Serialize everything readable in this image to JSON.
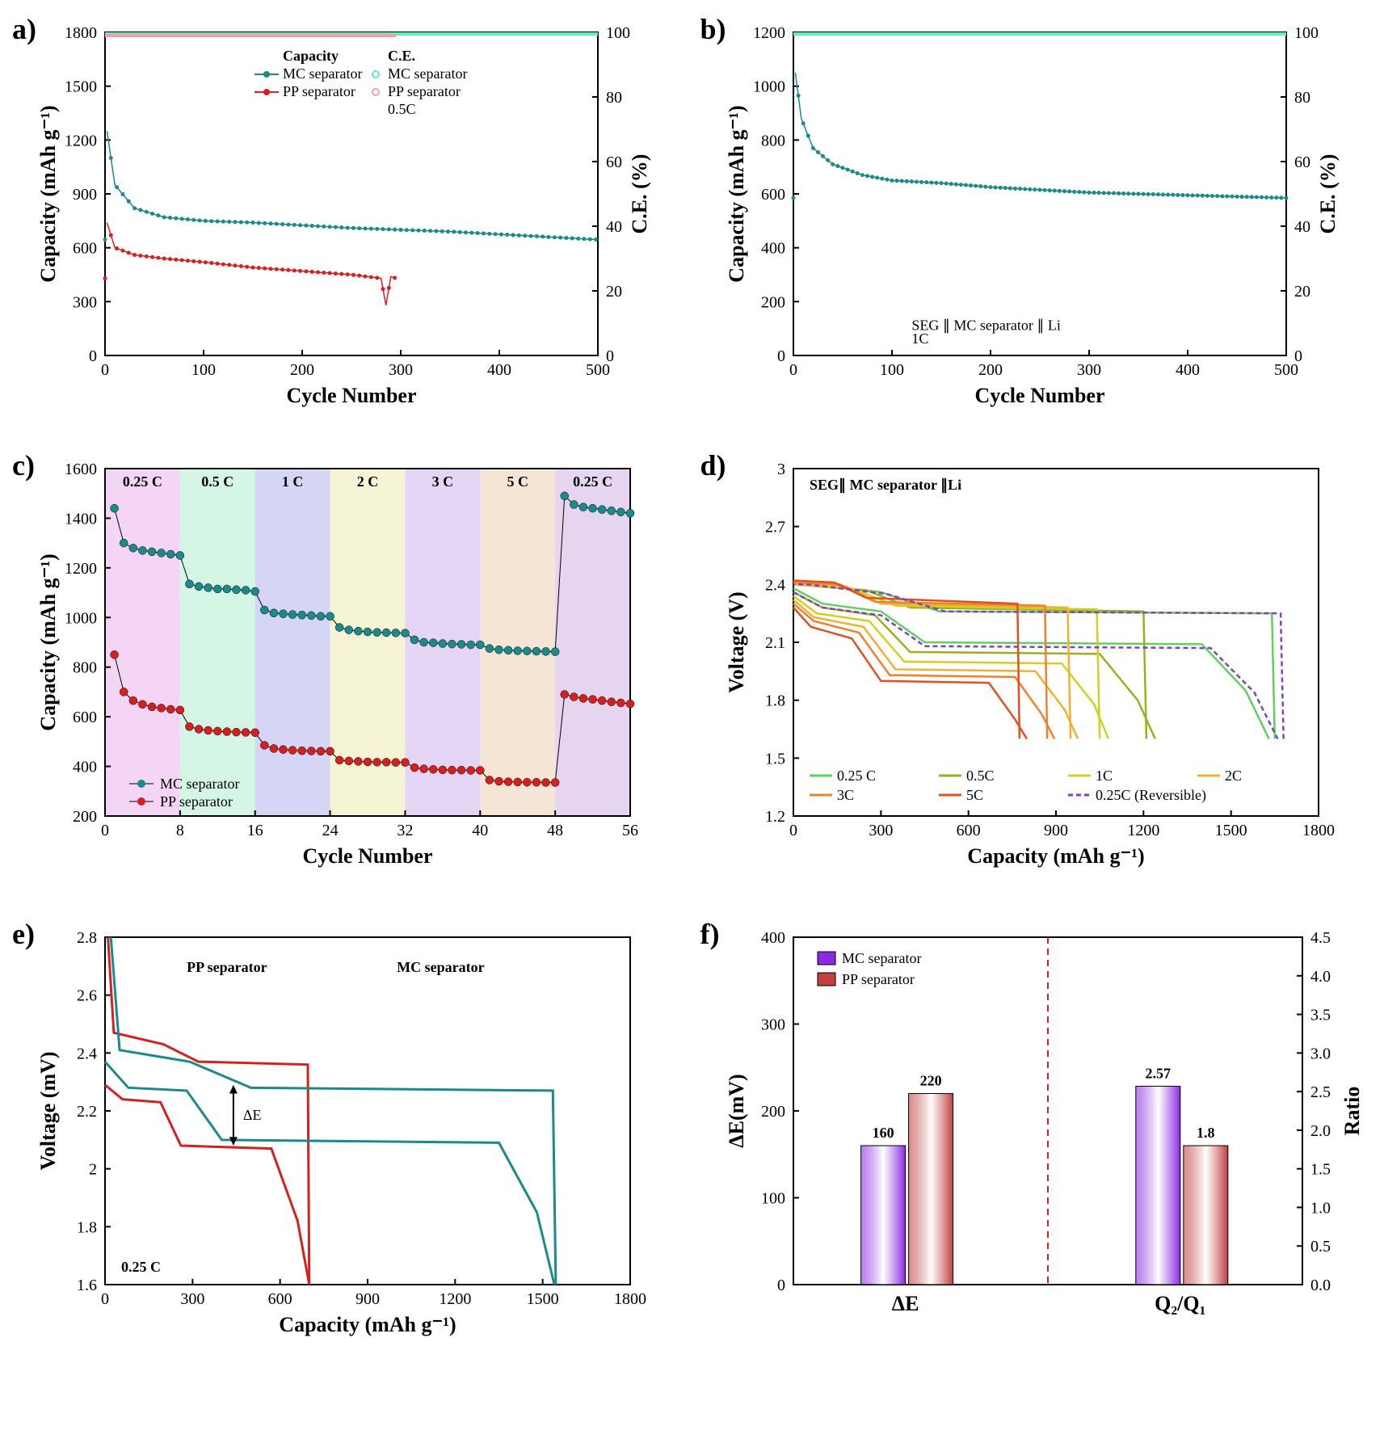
{
  "labels": {
    "a": "a)",
    "b": "b)",
    "c": "c)",
    "d": "d)",
    "e": "e)",
    "f": "f)"
  },
  "colors": {
    "mc": "#1a8a8a",
    "pp": "#d62020",
    "mc_ce": "#5bf0c0",
    "pp_ce": "#f5a0a0",
    "purple_bar": "#8a2be2",
    "red_bar": "#c04040",
    "rate_bands": [
      "#f5d5f5",
      "#d5f5e5",
      "#d5d5f5",
      "#f5f5d5",
      "#e5d5f5",
      "#f5e5d5",
      "#e5d5f0"
    ],
    "d_colors": [
      "#60d060",
      "#9ab020",
      "#d0d020",
      "#f0b030",
      "#f08030",
      "#e05020",
      "#8040c0"
    ]
  },
  "a": {
    "xlabel": "Cycle Number",
    "ylabel": "Capacity (mAh g⁻¹)",
    "y2label": "C.E. (%)",
    "xlim": [
      0,
      500
    ],
    "ylim": [
      0,
      1800
    ],
    "y2lim": [
      0,
      100
    ],
    "xticks": [
      0,
      100,
      200,
      300,
      400,
      500
    ],
    "yticks": [
      0,
      300,
      600,
      900,
      1200,
      1500,
      1800
    ],
    "y2ticks": [
      0,
      20,
      40,
      60,
      80,
      100
    ],
    "legend_header": [
      "Capacity",
      "C.E."
    ],
    "legend_rows": [
      [
        "MC separator",
        "MC separator"
      ],
      [
        "PP separator",
        "PP separator"
      ]
    ],
    "anno": "0.5C",
    "mc_cap": [
      [
        2,
        1250
      ],
      [
        10,
        950
      ],
      [
        30,
        820
      ],
      [
        60,
        770
      ],
      [
        100,
        750
      ],
      [
        150,
        740
      ],
      [
        200,
        725
      ],
      [
        250,
        710
      ],
      [
        300,
        700
      ],
      [
        350,
        690
      ],
      [
        400,
        675
      ],
      [
        450,
        660
      ],
      [
        500,
        645
      ]
    ],
    "pp_cap": [
      [
        2,
        740
      ],
      [
        10,
        600
      ],
      [
        30,
        560
      ],
      [
        60,
        540
      ],
      [
        100,
        520
      ],
      [
        150,
        490
      ],
      [
        200,
        470
      ],
      [
        250,
        450
      ],
      [
        280,
        430
      ],
      [
        285,
        280
      ],
      [
        290,
        440
      ],
      [
        295,
        430
      ]
    ],
    "mc_ce_y": 99.5,
    "pp_ce_y": 99.0
  },
  "b": {
    "xlabel": "Cycle Number",
    "ylabel": "Capacity (mAh g⁻¹)",
    "y2label": "C.E. (%)",
    "xlim": [
      0,
      500
    ],
    "ylim": [
      0,
      1200
    ],
    "y2lim": [
      0,
      100
    ],
    "xticks": [
      0,
      100,
      200,
      300,
      400,
      500
    ],
    "yticks": [
      0,
      200,
      400,
      600,
      800,
      1000,
      1200
    ],
    "y2ticks": [
      0,
      20,
      40,
      60,
      80,
      100
    ],
    "anno1": "SEG ∥ MC separator ∥ Li",
    "anno2": "1C",
    "mc_cap": [
      [
        2,
        1050
      ],
      [
        8,
        880
      ],
      [
        20,
        770
      ],
      [
        40,
        710
      ],
      [
        70,
        670
      ],
      [
        100,
        650
      ],
      [
        150,
        640
      ],
      [
        200,
        625
      ],
      [
        250,
        615
      ],
      [
        300,
        605
      ],
      [
        350,
        600
      ],
      [
        400,
        595
      ],
      [
        450,
        590
      ],
      [
        500,
        585
      ]
    ],
    "ce_y": 99.5
  },
  "c": {
    "xlabel": "Cycle Number",
    "ylabel": "Capacity (mAh g⁻¹)",
    "xlim": [
      0,
      56
    ],
    "ylim": [
      200,
      1600
    ],
    "xticks": [
      0,
      8,
      16,
      24,
      32,
      40,
      48,
      56
    ],
    "yticks": [
      200,
      400,
      600,
      800,
      1000,
      1200,
      1400,
      1600
    ],
    "rate_labels": [
      "0.25 C",
      "0.5 C",
      "1 C",
      "2 C",
      "3 C",
      "5 C",
      "0.25 C"
    ],
    "legend": [
      "MC separator",
      "PP  separator"
    ],
    "mc": [
      [
        1,
        1440
      ],
      [
        2,
        1300
      ],
      [
        3,
        1280
      ],
      [
        4,
        1270
      ],
      [
        5,
        1265
      ],
      [
        6,
        1260
      ],
      [
        7,
        1255
      ],
      [
        8,
        1250
      ],
      [
        9,
        1135
      ],
      [
        10,
        1125
      ],
      [
        11,
        1120
      ],
      [
        12,
        1115
      ],
      [
        13,
        1115
      ],
      [
        14,
        1112
      ],
      [
        15,
        1110
      ],
      [
        16,
        1105
      ],
      [
        17,
        1030
      ],
      [
        18,
        1018
      ],
      [
        19,
        1015
      ],
      [
        20,
        1012
      ],
      [
        21,
        1010
      ],
      [
        22,
        1008
      ],
      [
        23,
        1005
      ],
      [
        24,
        1005
      ],
      [
        25,
        960
      ],
      [
        26,
        950
      ],
      [
        27,
        945
      ],
      [
        28,
        942
      ],
      [
        29,
        940
      ],
      [
        30,
        939
      ],
      [
        31,
        938
      ],
      [
        32,
        937
      ],
      [
        33,
        910
      ],
      [
        34,
        900
      ],
      [
        35,
        898
      ],
      [
        36,
        895
      ],
      [
        37,
        893
      ],
      [
        38,
        892
      ],
      [
        39,
        890
      ],
      [
        40,
        890
      ],
      [
        41,
        875
      ],
      [
        42,
        870
      ],
      [
        43,
        868
      ],
      [
        44,
        866
      ],
      [
        45,
        865
      ],
      [
        46,
        864
      ],
      [
        47,
        863
      ],
      [
        48,
        862
      ],
      [
        49,
        1490
      ],
      [
        50,
        1455
      ],
      [
        51,
        1445
      ],
      [
        52,
        1440
      ],
      [
        53,
        1435
      ],
      [
        54,
        1430
      ],
      [
        55,
        1425
      ],
      [
        56,
        1420
      ]
    ],
    "pp": [
      [
        1,
        850
      ],
      [
        2,
        700
      ],
      [
        3,
        665
      ],
      [
        4,
        650
      ],
      [
        5,
        640
      ],
      [
        6,
        635
      ],
      [
        7,
        630
      ],
      [
        8,
        627
      ],
      [
        9,
        560
      ],
      [
        10,
        550
      ],
      [
        11,
        545
      ],
      [
        12,
        542
      ],
      [
        13,
        540
      ],
      [
        14,
        538
      ],
      [
        15,
        537
      ],
      [
        16,
        536
      ],
      [
        17,
        485
      ],
      [
        18,
        472
      ],
      [
        19,
        468
      ],
      [
        20,
        465
      ],
      [
        21,
        463
      ],
      [
        22,
        462
      ],
      [
        23,
        461
      ],
      [
        24,
        461
      ],
      [
        25,
        425
      ],
      [
        26,
        422
      ],
      [
        27,
        420
      ],
      [
        28,
        418
      ],
      [
        29,
        417
      ],
      [
        30,
        417
      ],
      [
        31,
        416
      ],
      [
        32,
        416
      ],
      [
        33,
        395
      ],
      [
        34,
        390
      ],
      [
        35,
        388
      ],
      [
        36,
        386
      ],
      [
        37,
        385
      ],
      [
        38,
        385
      ],
      [
        39,
        384
      ],
      [
        40,
        384
      ],
      [
        41,
        345
      ],
      [
        42,
        340
      ],
      [
        43,
        338
      ],
      [
        44,
        337
      ],
      [
        45,
        336
      ],
      [
        46,
        336
      ],
      [
        47,
        335
      ],
      [
        48,
        335
      ],
      [
        49,
        690
      ],
      [
        50,
        680
      ],
      [
        51,
        674
      ],
      [
        52,
        670
      ],
      [
        53,
        665
      ],
      [
        54,
        660
      ],
      [
        55,
        656
      ],
      [
        56,
        652
      ]
    ]
  },
  "d": {
    "xlabel": "Capacity (mAh g⁻¹)",
    "ylabel": "Voltage (V)",
    "xlim": [
      0,
      1800
    ],
    "ylim": [
      1.2,
      3.0
    ],
    "xticks": [
      0,
      300,
      600,
      900,
      1200,
      1500,
      1800
    ],
    "yticks": [
      1.2,
      1.5,
      1.8,
      2.1,
      2.4,
      2.7,
      3.0
    ],
    "anno": "SEG∥ MC separator ∥Li",
    "legend": [
      "0.25 C",
      "0.5C",
      "1C",
      "2C",
      "3C",
      "5C",
      "0.25C (Reversible)"
    ],
    "curves": [
      {
        "c": 0,
        "dis": [
          [
            0,
            2.38
          ],
          [
            100,
            2.3
          ],
          [
            300,
            2.26
          ],
          [
            450,
            2.1
          ],
          [
            1400,
            2.09
          ],
          [
            1550,
            1.85
          ],
          [
            1630,
            1.6
          ]
        ],
        "chg": [
          [
            1650,
            1.6
          ],
          [
            1640,
            2.25
          ],
          [
            500,
            2.26
          ],
          [
            300,
            2.36
          ],
          [
            50,
            2.4
          ],
          [
            0,
            2.4
          ]
        ]
      },
      {
        "c": 1,
        "dis": [
          [
            0,
            2.36
          ],
          [
            100,
            2.28
          ],
          [
            280,
            2.24
          ],
          [
            400,
            2.05
          ],
          [
            1050,
            2.04
          ],
          [
            1180,
            1.8
          ],
          [
            1240,
            1.6
          ]
        ],
        "chg": [
          [
            1210,
            1.6
          ],
          [
            1200,
            2.26
          ],
          [
            400,
            2.28
          ],
          [
            250,
            2.37
          ],
          [
            0,
            2.4
          ]
        ]
      },
      {
        "c": 2,
        "dis": [
          [
            0,
            2.34
          ],
          [
            80,
            2.25
          ],
          [
            260,
            2.21
          ],
          [
            380,
            2.0
          ],
          [
            920,
            1.99
          ],
          [
            1030,
            1.78
          ],
          [
            1080,
            1.6
          ]
        ],
        "chg": [
          [
            1050,
            1.6
          ],
          [
            1040,
            2.27
          ],
          [
            350,
            2.29
          ],
          [
            200,
            2.38
          ],
          [
            0,
            2.4
          ]
        ]
      },
      {
        "c": 3,
        "dis": [
          [
            0,
            2.32
          ],
          [
            70,
            2.23
          ],
          [
            240,
            2.18
          ],
          [
            350,
            1.96
          ],
          [
            830,
            1.95
          ],
          [
            930,
            1.75
          ],
          [
            975,
            1.6
          ]
        ],
        "chg": [
          [
            950,
            1.6
          ],
          [
            940,
            2.28
          ],
          [
            300,
            2.3
          ],
          [
            180,
            2.39
          ],
          [
            0,
            2.4
          ]
        ]
      },
      {
        "c": 4,
        "dis": [
          [
            0,
            2.3
          ],
          [
            70,
            2.21
          ],
          [
            225,
            2.15
          ],
          [
            330,
            1.93
          ],
          [
            760,
            1.92
          ],
          [
            850,
            1.73
          ],
          [
            895,
            1.6
          ]
        ],
        "chg": [
          [
            870,
            1.6
          ],
          [
            862,
            2.29
          ],
          [
            280,
            2.31
          ],
          [
            160,
            2.4
          ],
          [
            0,
            2.41
          ]
        ]
      },
      {
        "c": 5,
        "dis": [
          [
            0,
            2.28
          ],
          [
            60,
            2.18
          ],
          [
            200,
            2.12
          ],
          [
            300,
            1.9
          ],
          [
            670,
            1.89
          ],
          [
            760,
            1.7
          ],
          [
            800,
            1.6
          ]
        ],
        "chg": [
          [
            775,
            1.6
          ],
          [
            768,
            2.3
          ],
          [
            250,
            2.33
          ],
          [
            140,
            2.41
          ],
          [
            0,
            2.42
          ]
        ]
      },
      {
        "c": 6,
        "dash": true,
        "dis": [
          [
            0,
            2.36
          ],
          [
            100,
            2.28
          ],
          [
            300,
            2.24
          ],
          [
            450,
            2.08
          ],
          [
            1430,
            2.07
          ],
          [
            1580,
            1.84
          ],
          [
            1660,
            1.6
          ]
        ],
        "chg": [
          [
            1680,
            1.6
          ],
          [
            1670,
            2.25
          ],
          [
            520,
            2.26
          ],
          [
            320,
            2.35
          ],
          [
            50,
            2.4
          ],
          [
            0,
            2.4
          ]
        ]
      }
    ]
  },
  "e": {
    "xlabel": "Capacity (mAh g⁻¹)",
    "ylabel": "Voltage (mV)",
    "xlim": [
      0,
      1800
    ],
    "ylim": [
      1.6,
      2.8
    ],
    "xticks": [
      0,
      300,
      600,
      900,
      1200,
      1500,
      1800
    ],
    "yticks": [
      1.6,
      1.8,
      2.0,
      2.2,
      2.4,
      2.6,
      2.8
    ],
    "legend": [
      "PP separator",
      "MC separator"
    ],
    "anno_rate": "0.25 C",
    "anno_de": "ΔE",
    "pp": {
      "dis": [
        [
          0,
          2.29
        ],
        [
          60,
          2.24
        ],
        [
          190,
          2.23
        ],
        [
          260,
          2.08
        ],
        [
          570,
          2.07
        ],
        [
          660,
          1.82
        ],
        [
          700,
          1.6
        ]
      ],
      "chg": [
        [
          700,
          1.6
        ],
        [
          695,
          2.36
        ],
        [
          320,
          2.37
        ],
        [
          200,
          2.43
        ],
        [
          30,
          2.47
        ],
        [
          10,
          2.8
        ]
      ]
    },
    "mc": {
      "dis": [
        [
          0,
          2.37
        ],
        [
          80,
          2.28
        ],
        [
          280,
          2.27
        ],
        [
          400,
          2.1
        ],
        [
          1350,
          2.09
        ],
        [
          1480,
          1.85
        ],
        [
          1540,
          1.6
        ]
      ],
      "chg": [
        [
          1545,
          1.6
        ],
        [
          1535,
          2.27
        ],
        [
          500,
          2.28
        ],
        [
          290,
          2.37
        ],
        [
          50,
          2.41
        ],
        [
          20,
          2.8
        ]
      ]
    }
  },
  "f": {
    "xlabel_left": "ΔE",
    "xlabel_right": "Q₂/Q₁",
    "ylabel": "ΔE(mV)",
    "y2label": "Ratio",
    "ylim": [
      0,
      400
    ],
    "y2lim": [
      0.0,
      4.5
    ],
    "yticks": [
      0,
      100,
      200,
      300,
      400
    ],
    "y2ticks": [
      0.0,
      0.5,
      1.0,
      1.5,
      2.0,
      2.5,
      3.0,
      3.5,
      4.0,
      4.5
    ],
    "legend": [
      "MC separator",
      "PP  separator"
    ],
    "de": {
      "mc": 160,
      "pp": 220
    },
    "ratio": {
      "mc": 2.57,
      "pp": 1.8
    }
  }
}
